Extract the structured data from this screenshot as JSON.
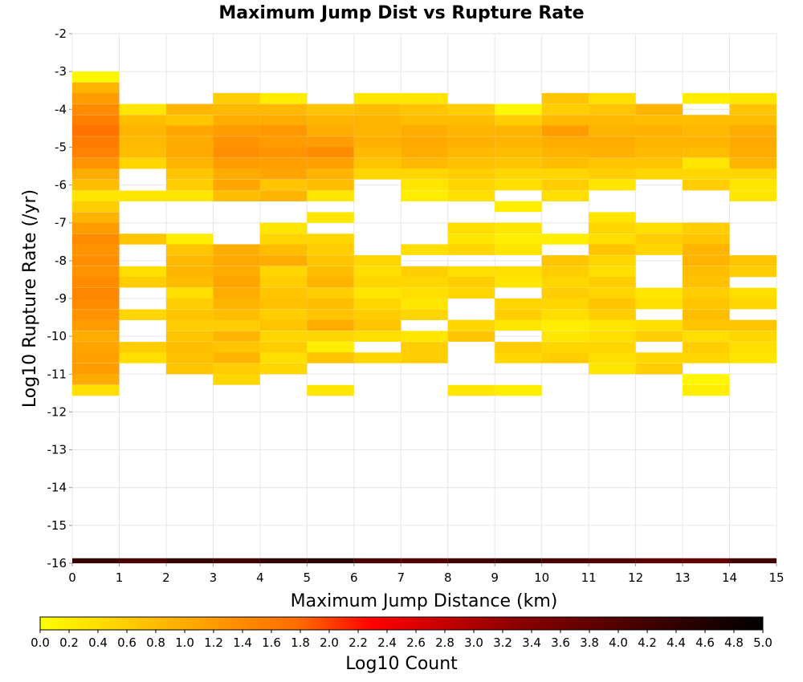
{
  "chart_data": {
    "type": "heatmap",
    "title": "Maximum Jump Dist vs Rupture Rate",
    "xlabel": "Maximum Jump Distance (km)",
    "ylabel": "Log10 Rupture Rate (/yr)",
    "xlim": [
      0,
      15
    ],
    "ylim": [
      -16,
      -2
    ],
    "x_ticks": [
      "0",
      "1",
      "2",
      "3",
      "4",
      "5",
      "6",
      "7",
      "8",
      "9",
      "10",
      "11",
      "12",
      "13",
      "14",
      "15"
    ],
    "y_ticks": [
      "-2",
      "-3",
      "-4",
      "-5",
      "-6",
      "-7",
      "-8",
      "-9",
      "-10",
      "-11",
      "-12",
      "-13",
      "-14",
      "-15",
      "-16"
    ],
    "x_bin_width": 1,
    "y_bin_height": 0.2857,
    "grid": true,
    "colorbar": {
      "label": "Log10 Count",
      "range": [
        0,
        5
      ],
      "ticks": [
        "0.0",
        "0.2",
        "0.4",
        "0.6",
        "0.8",
        "1.0",
        "1.2",
        "1.4",
        "1.6",
        "1.8",
        "2.0",
        "2.2",
        "2.4",
        "2.6",
        "2.8",
        "3.0",
        "3.2",
        "3.4",
        "3.6",
        "3.8",
        "4.0",
        "4.2",
        "4.4",
        "4.6",
        "4.8",
        "5.0"
      ],
      "colors": [
        "#ffff00",
        "#ff6a00",
        "#ff0000",
        "#8b0000",
        "#000000"
      ],
      "position": "bottom"
    },
    "bottom_row": {
      "y": -16,
      "values": [
        4.3,
        4.1,
        4.3,
        4.2,
        4.4,
        4.5,
        4.1,
        4.0,
        4.2,
        4.3,
        4.1,
        4.0,
        3.9,
        3.8,
        4.2
      ]
    },
    "column_data": [
      {
        "x": 0,
        "ybins": [
          -3.14,
          -3.43,
          -3.71,
          -4.0,
          -4.29,
          -4.57,
          -4.86,
          -5.14,
          -5.43,
          -5.71,
          -6.0,
          -6.29,
          -6.57,
          -6.86,
          -7.14,
          -7.43,
          -7.71,
          -8.0,
          -8.29,
          -8.57,
          -8.86,
          -9.14,
          -9.43,
          -9.71,
          -10.0,
          -10.29,
          -10.57,
          -10.86,
          -11.14,
          -11.43
        ],
        "values": [
          0.1,
          0.9,
          1.2,
          1.4,
          1.55,
          1.7,
          1.6,
          1.5,
          1.3,
          1.0,
          0.8,
          0.3,
          0.6,
          0.9,
          1.2,
          1.4,
          1.3,
          1.35,
          1.3,
          1.4,
          1.45,
          1.4,
          1.3,
          1.2,
          1.0,
          1.1,
          1.15,
          1.2,
          1.0,
          0.4
        ]
      },
      {
        "x": 1,
        "ybins": [
          -4.0,
          -4.29,
          -4.57,
          -4.86,
          -5.14,
          -5.43,
          -6.29,
          -7.43,
          -8.29,
          -8.57,
          -9.43,
          -10.29,
          -10.57
        ],
        "values": [
          0.3,
          0.8,
          0.9,
          0.85,
          0.8,
          0.5,
          0.3,
          0.7,
          0.4,
          0.6,
          0.5,
          0.6,
          0.4
        ]
      },
      {
        "x": 2,
        "ybins": [
          -4.0,
          -4.29,
          -4.57,
          -4.86,
          -5.14,
          -5.43,
          -5.71,
          -6.0,
          -6.29,
          -7.43,
          -7.71,
          -8.0,
          -8.29,
          -8.57,
          -8.86,
          -9.14,
          -9.43,
          -9.71,
          -10.0,
          -10.29,
          -10.57,
          -10.86
        ],
        "values": [
          0.9,
          0.7,
          1.1,
          1.0,
          1.05,
          0.9,
          0.7,
          0.6,
          0.3,
          0.2,
          0.7,
          0.85,
          0.9,
          0.8,
          0.4,
          0.6,
          0.7,
          0.6,
          0.7,
          0.8,
          0.75,
          0.7
        ]
      },
      {
        "x": 3,
        "ybins": [
          -3.71,
          -4.0,
          -4.29,
          -4.57,
          -4.86,
          -5.14,
          -5.43,
          -5.71,
          -6.0,
          -6.29,
          -7.71,
          -8.0,
          -8.29,
          -8.57,
          -8.86,
          -9.14,
          -9.43,
          -9.71,
          -10.0,
          -10.29,
          -10.57,
          -10.86,
          -11.14
        ],
        "values": [
          0.6,
          0.85,
          1.0,
          1.2,
          1.3,
          1.35,
          1.2,
          1.0,
          1.1,
          0.8,
          1.0,
          1.05,
          1.0,
          1.1,
          1.0,
          0.9,
          0.8,
          0.6,
          0.9,
          0.7,
          0.9,
          0.6,
          0.5
        ]
      },
      {
        "x": 4,
        "ybins": [
          -3.71,
          -4.0,
          -4.29,
          -4.57,
          -4.86,
          -5.14,
          -5.43,
          -5.71,
          -6.0,
          -6.29,
          -7.14,
          -7.43,
          -7.71,
          -8.0,
          -8.29,
          -8.57,
          -8.86,
          -9.14,
          -9.43,
          -9.71,
          -10.0,
          -10.29,
          -10.57,
          -10.86
        ],
        "values": [
          0.2,
          0.85,
          1.0,
          1.25,
          1.2,
          1.3,
          1.15,
          1.1,
          0.7,
          0.9,
          0.3,
          0.5,
          0.8,
          1.0,
          0.5,
          0.6,
          0.7,
          0.75,
          0.6,
          0.7,
          0.5,
          0.6,
          0.4,
          0.5
        ]
      },
      {
        "x": 5,
        "ybins": [
          -4.0,
          -4.29,
          -4.57,
          -4.86,
          -5.14,
          -5.43,
          -5.71,
          -6.0,
          -6.29,
          -6.86,
          -7.43,
          -7.71,
          -8.0,
          -8.29,
          -8.57,
          -8.86,
          -9.14,
          -9.43,
          -9.71,
          -10.0,
          -10.29,
          -10.57,
          -11.43
        ],
        "values": [
          0.7,
          0.9,
          1.0,
          1.2,
          1.4,
          1.15,
          0.9,
          0.8,
          0.3,
          0.3,
          0.5,
          0.6,
          0.7,
          0.8,
          0.9,
          0.6,
          0.8,
          0.7,
          1.0,
          0.5,
          0.2,
          0.7,
          0.3
        ]
      },
      {
        "x": 6,
        "ybins": [
          -3.71,
          -4.0,
          -4.29,
          -4.57,
          -4.86,
          -5.14,
          -5.43,
          -5.71,
          -8.0,
          -8.29,
          -8.57,
          -8.86,
          -9.14,
          -9.43,
          -9.71,
          -10.0,
          -10.57
        ],
        "values": [
          0.3,
          0.8,
          0.9,
          0.9,
          0.95,
          0.85,
          0.7,
          0.5,
          0.5,
          0.4,
          0.5,
          0.3,
          0.5,
          0.6,
          0.7,
          0.4,
          0.5
        ]
      },
      {
        "x": 7,
        "ybins": [
          -3.71,
          -4.0,
          -4.29,
          -4.57,
          -4.86,
          -5.14,
          -5.43,
          -5.71,
          -6.0,
          -6.29,
          -7.71,
          -8.29,
          -8.57,
          -8.86,
          -9.14,
          -9.43,
          -10.0,
          -10.29,
          -10.57
        ],
        "values": [
          0.3,
          0.7,
          0.8,
          1.0,
          1.05,
          1.0,
          0.85,
          0.5,
          0.3,
          0.2,
          0.4,
          0.6,
          0.5,
          0.4,
          0.3,
          0.5,
          0.3,
          0.6,
          0.6
        ]
      },
      {
        "x": 8,
        "ybins": [
          -4.0,
          -4.29,
          -4.57,
          -4.86,
          -5.14,
          -5.43,
          -5.71,
          -6.0,
          -6.29,
          -7.14,
          -7.43,
          -7.71,
          -8.29,
          -8.57,
          -8.86,
          -9.71,
          -10.0,
          -11.43
        ],
        "values": [
          0.6,
          0.8,
          0.9,
          0.95,
          0.85,
          0.75,
          0.6,
          0.5,
          0.4,
          0.4,
          0.3,
          0.5,
          0.4,
          0.6,
          0.5,
          0.5,
          0.7,
          0.3
        ]
      },
      {
        "x": 9,
        "ybins": [
          -4.0,
          -4.29,
          -4.57,
          -4.86,
          -5.14,
          -5.43,
          -5.71,
          -6.0,
          -6.57,
          -7.14,
          -7.43,
          -7.71,
          -8.29,
          -8.57,
          -9.14,
          -9.43,
          -9.71,
          -10.29,
          -10.57,
          -11.43
        ],
        "values": [
          0.1,
          0.6,
          0.9,
          0.9,
          0.8,
          0.7,
          0.5,
          0.4,
          0.2,
          0.3,
          0.2,
          0.3,
          0.4,
          0.3,
          0.5,
          0.6,
          0.3,
          0.6,
          0.5,
          0.2
        ]
      },
      {
        "x": 10,
        "ybins": [
          -3.71,
          -4.0,
          -4.29,
          -4.57,
          -4.86,
          -5.14,
          -5.43,
          -5.71,
          -6.0,
          -6.29,
          -7.43,
          -8.0,
          -8.29,
          -8.57,
          -8.86,
          -9.14,
          -9.43,
          -9.71,
          -10.0,
          -10.29,
          -10.57
        ],
        "values": [
          0.7,
          0.6,
          0.85,
          1.2,
          1.0,
          0.9,
          0.8,
          0.5,
          0.6,
          0.4,
          0.2,
          0.7,
          0.6,
          0.5,
          0.6,
          0.5,
          0.4,
          0.2,
          0.3,
          0.5,
          0.6
        ]
      },
      {
        "x": 11,
        "ybins": [
          -3.71,
          -4.0,
          -4.29,
          -4.57,
          -4.86,
          -5.14,
          -5.43,
          -5.71,
          -6.0,
          -6.86,
          -7.14,
          -7.43,
          -7.71,
          -8.0,
          -8.29,
          -8.57,
          -8.86,
          -9.14,
          -9.43,
          -9.71,
          -10.0,
          -10.29,
          -10.57,
          -10.86
        ],
        "values": [
          0.4,
          0.7,
          0.85,
          0.9,
          1.0,
          0.95,
          0.7,
          0.6,
          0.3,
          0.3,
          0.5,
          0.4,
          0.7,
          0.5,
          0.4,
          0.6,
          0.5,
          0.7,
          0.6,
          0.3,
          0.4,
          0.5,
          0.4,
          0.3
        ]
      },
      {
        "x": 12,
        "ybins": [
          -4.0,
          -4.29,
          -4.57,
          -4.86,
          -5.14,
          -5.43,
          -5.71,
          -7.14,
          -7.43,
          -7.71,
          -8.86,
          -9.14,
          -9.71,
          -10.0,
          -10.57,
          -10.86
        ],
        "values": [
          0.9,
          0.8,
          0.95,
          0.9,
          0.85,
          0.7,
          0.5,
          0.4,
          0.6,
          0.5,
          0.3,
          0.4,
          0.4,
          0.6,
          0.5,
          0.6
        ]
      },
      {
        "x": 13,
        "ybins": [
          -3.71,
          -4.29,
          -4.57,
          -4.86,
          -5.14,
          -5.43,
          -5.71,
          -6.0,
          -7.14,
          -7.43,
          -7.71,
          -8.0,
          -8.29,
          -8.57,
          -8.86,
          -9.14,
          -9.43,
          -9.71,
          -10.0,
          -10.29,
          -10.57,
          -11.14,
          -11.43
        ],
        "values": [
          0.2,
          0.8,
          0.85,
          0.9,
          0.8,
          0.3,
          0.5,
          0.6,
          0.6,
          0.7,
          0.9,
          0.9,
          0.8,
          0.75,
          0.6,
          0.7,
          0.8,
          0.7,
          0.4,
          0.6,
          0.5,
          0.1,
          0.2
        ]
      },
      {
        "x": 14,
        "ybins": [
          -3.71,
          -4.0,
          -4.29,
          -4.57,
          -4.86,
          -5.14,
          -5.43,
          -5.71,
          -6.0,
          -6.29,
          -8.0,
          -8.29,
          -8.86,
          -9.14,
          -9.71,
          -10.0,
          -10.29,
          -10.57
        ],
        "values": [
          0.3,
          0.7,
          0.8,
          1.0,
          1.05,
          1.0,
          0.9,
          0.5,
          0.3,
          0.3,
          0.7,
          0.6,
          0.4,
          0.5,
          0.7,
          0.5,
          0.4,
          0.3
        ]
      }
    ]
  }
}
